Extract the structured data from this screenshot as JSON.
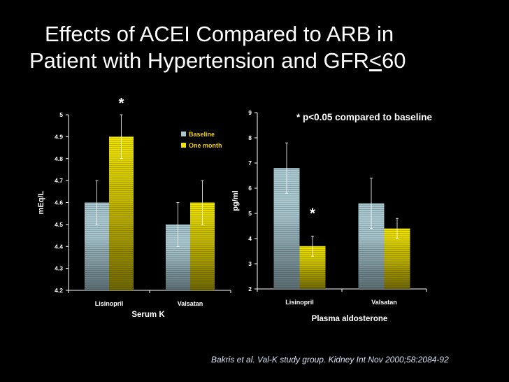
{
  "title": {
    "line1": "Effects of ACEI Compared to ARB in",
    "line2_pre": "Patient with Hypertension and GFR",
    "line2_sym": "<",
    "line2_post": "60"
  },
  "note": "* p<0.05 compared to baseline",
  "citation": "Bakris et al. Val-K study group. Kidney Int Nov 2000;58:2084-92",
  "colors": {
    "baseline": "#a9c7cf",
    "one_month": "#f2e600",
    "background": "#000000"
  },
  "chart_data": [
    {
      "type": "bar",
      "title": "",
      "xlabel": "Serum K",
      "ylabel": "mEq/L",
      "ylim": [
        4.2,
        5.0
      ],
      "yticks": [
        "4.2",
        "4.3",
        "4.4",
        "4.5",
        "4.6",
        "4.7",
        "4.8",
        "4.9",
        "5"
      ],
      "categories": [
        "Lisinopril",
        "Valsatan"
      ],
      "series": [
        {
          "name": "Baseline",
          "values": [
            4.6,
            4.5
          ],
          "err_low": [
            4.5,
            4.4
          ],
          "err_high": [
            4.7,
            4.6
          ]
        },
        {
          "name": "One month",
          "values": [
            4.9,
            4.6
          ],
          "err_low": [
            4.8,
            4.5
          ],
          "err_high": [
            5.0,
            4.7
          ]
        }
      ],
      "annotations": [
        {
          "text": "*",
          "category": "Lisinopril",
          "series": "One month"
        }
      ],
      "legend": "top-right",
      "grid": false
    },
    {
      "type": "bar",
      "title": "",
      "xlabel": "Plasma aldosterone",
      "ylabel": "pg/ml",
      "ylim": [
        2,
        9
      ],
      "yticks": [
        "2",
        "3",
        "4",
        "5",
        "6",
        "7",
        "8",
        "9"
      ],
      "categories": [
        "Lisinopril",
        "Valsatan"
      ],
      "series": [
        {
          "name": "Baseline",
          "values": [
            6.8,
            5.4
          ],
          "err_low": [
            5.8,
            4.4
          ],
          "err_high": [
            7.8,
            6.4
          ]
        },
        {
          "name": "One month",
          "values": [
            3.7,
            4.4
          ],
          "err_low": [
            3.3,
            4.0
          ],
          "err_high": [
            4.1,
            4.8
          ]
        }
      ],
      "annotations": [
        {
          "text": "*",
          "category": "Lisinopril",
          "series": "One month"
        }
      ],
      "grid": false
    }
  ]
}
